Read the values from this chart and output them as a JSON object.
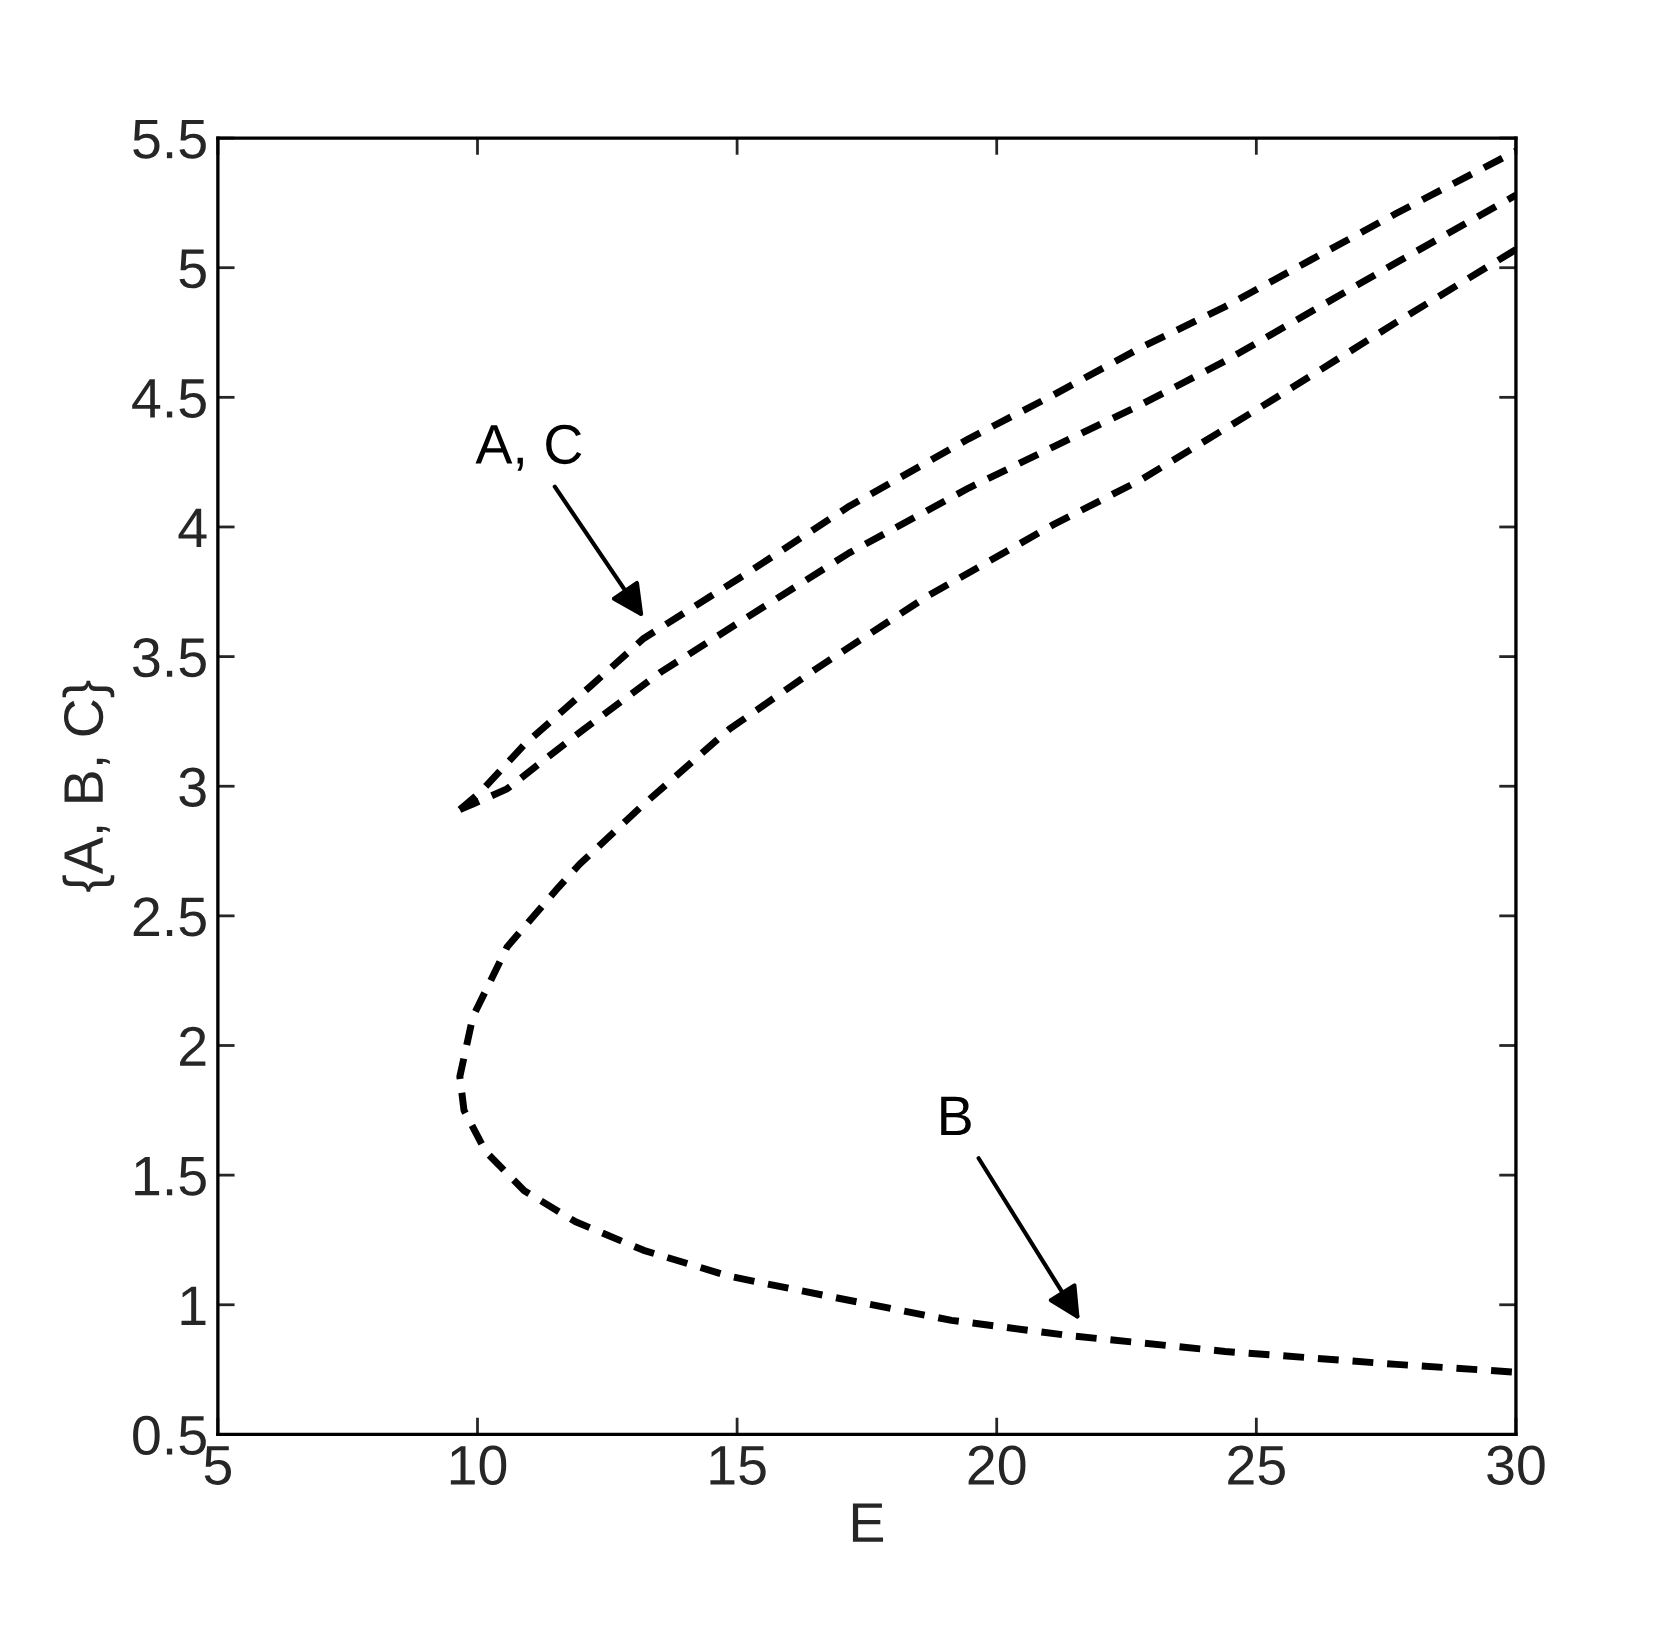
{
  "chart_data": {
    "type": "line",
    "xlabel": "E",
    "ylabel": "{A, B, C}",
    "xlim": [
      5,
      30
    ],
    "ylim": [
      0.5,
      5.5
    ],
    "xticks": [
      5,
      10,
      15,
      20,
      25,
      30
    ],
    "yticks": [
      0.5,
      1,
      1.5,
      2,
      2.5,
      3,
      3.5,
      4,
      4.5,
      5,
      5.5
    ],
    "grid": false,
    "legend": false,
    "marker": "none",
    "line_style": "dashed",
    "series": [
      {
        "color": "#000000",
        "x": [
          9.66,
          10.07,
          10.9,
          12.2,
          13.2,
          15.18,
          17.16,
          19.46,
          21.1,
          22.76,
          24.4,
          26.05,
          27.7,
          30
        ],
        "values": [
          2.91,
          2.98,
          3.16,
          3.39,
          3.57,
          3.82,
          4.08,
          4.34,
          4.51,
          4.69,
          4.85,
          5.03,
          5.21,
          5.45
        ]
      },
      {
        "color": "#000000",
        "x": [
          9.66,
          9.9,
          10.57,
          12.05,
          13.53,
          15.18,
          17.16,
          19.46,
          21.1,
          22.76,
          24.4,
          26.05,
          27.7,
          30
        ],
        "values": [
          2.91,
          2.93,
          2.99,
          3.22,
          3.44,
          3.65,
          3.9,
          4.15,
          4.31,
          4.47,
          4.64,
          4.83,
          5.02,
          5.28
        ]
      },
      {
        "color": "#000000",
        "x": [
          30,
          27.7,
          25.23,
          22.76,
          21.1,
          18.64,
          16.5,
          14.85,
          13.2,
          11.97,
          11.56,
          10.57,
          9.91,
          9.66,
          9.74,
          10.16,
          10.9,
          11.89,
          13.2,
          14.85,
          16.83,
          19.13,
          21.44,
          24.4,
          27.7,
          30
        ],
        "values": [
          5.07,
          4.79,
          4.48,
          4.18,
          4.01,
          3.73,
          3.45,
          3.22,
          2.93,
          2.7,
          2.61,
          2.38,
          2.11,
          1.88,
          1.75,
          1.59,
          1.44,
          1.32,
          1.21,
          1.11,
          1.03,
          0.94,
          0.88,
          0.82,
          0.77,
          0.74
        ]
      }
    ],
    "annotations": [
      "A, C",
      "B"
    ]
  }
}
